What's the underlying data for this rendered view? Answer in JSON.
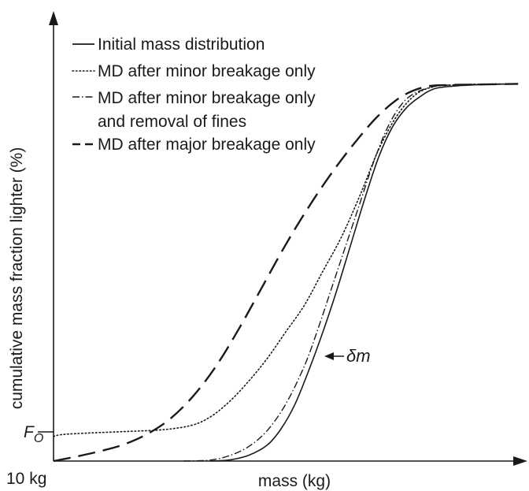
{
  "chart_data": {
    "type": "line",
    "xlabel": "mass (kg)",
    "ylabel": "cumulative mass fraction lighter (%)",
    "x_tick_label": "10 kg",
    "y_tick_label": "F",
    "y_tick_subscript": "O",
    "x_range": [
      0,
      100
    ],
    "y_range": [
      0,
      100
    ],
    "grid": false,
    "legend_position": "top-left",
    "series": [
      {
        "name": "Initial mass distribution",
        "style": "solid",
        "x": [
          34,
          38,
          42,
          46,
          49,
          52,
          55,
          58,
          61,
          64,
          67,
          70,
          73,
          76,
          79,
          82,
          86,
          90,
          96,
          100
        ],
        "y": [
          0,
          0.3,
          1.5,
          4.2,
          8.5,
          15,
          24,
          34,
          45,
          57,
          69,
          80,
          88,
          93,
          96,
          98,
          98.7,
          99,
          99.2,
          99.3
        ]
      },
      {
        "name": "MD after minor breakage only",
        "style": "dotted",
        "x": [
          0,
          2,
          8,
          16,
          24,
          30,
          34,
          38,
          42,
          46,
          50,
          54,
          58,
          62,
          66,
          70,
          74,
          78,
          82,
          86,
          92,
          100
        ],
        "y": [
          6.5,
          7,
          7.4,
          7.8,
          8.3,
          9.5,
          11.8,
          15.8,
          21,
          27,
          34,
          41,
          50,
          59,
          70,
          82,
          91,
          96.5,
          98.6,
          99,
          99.2,
          99.3
        ]
      },
      {
        "name": "MD after minor breakage only and removal of fines",
        "style": "dash-dot",
        "x": [
          28,
          34,
          38,
          42,
          46,
          50,
          54,
          57,
          60,
          63,
          66,
          69,
          72,
          75,
          78,
          82,
          86,
          92,
          100
        ],
        "y": [
          0,
          0.3,
          1.5,
          3.8,
          8,
          15,
          25,
          35,
          46,
          57,
          68,
          79,
          88,
          94,
          97,
          98.6,
          99,
          99.2,
          99.3
        ]
      },
      {
        "name": "MD after major breakage only",
        "style": "dashed",
        "x": [
          0,
          5,
          10,
          15,
          20,
          25,
          30,
          35,
          40,
          45,
          50,
          55,
          60,
          65,
          70,
          75,
          80,
          85,
          90,
          95,
          100
        ],
        "y": [
          0,
          1.2,
          2.6,
          4.3,
          7,
          11,
          17,
          25,
          35,
          46,
          57,
          67,
          76,
          84,
          91,
          96,
          98.5,
          99,
          99.1,
          99.2,
          99.3
        ]
      }
    ],
    "annotations": [
      {
        "text": "δm",
        "x": 62,
        "y": 33.5
      }
    ]
  }
}
